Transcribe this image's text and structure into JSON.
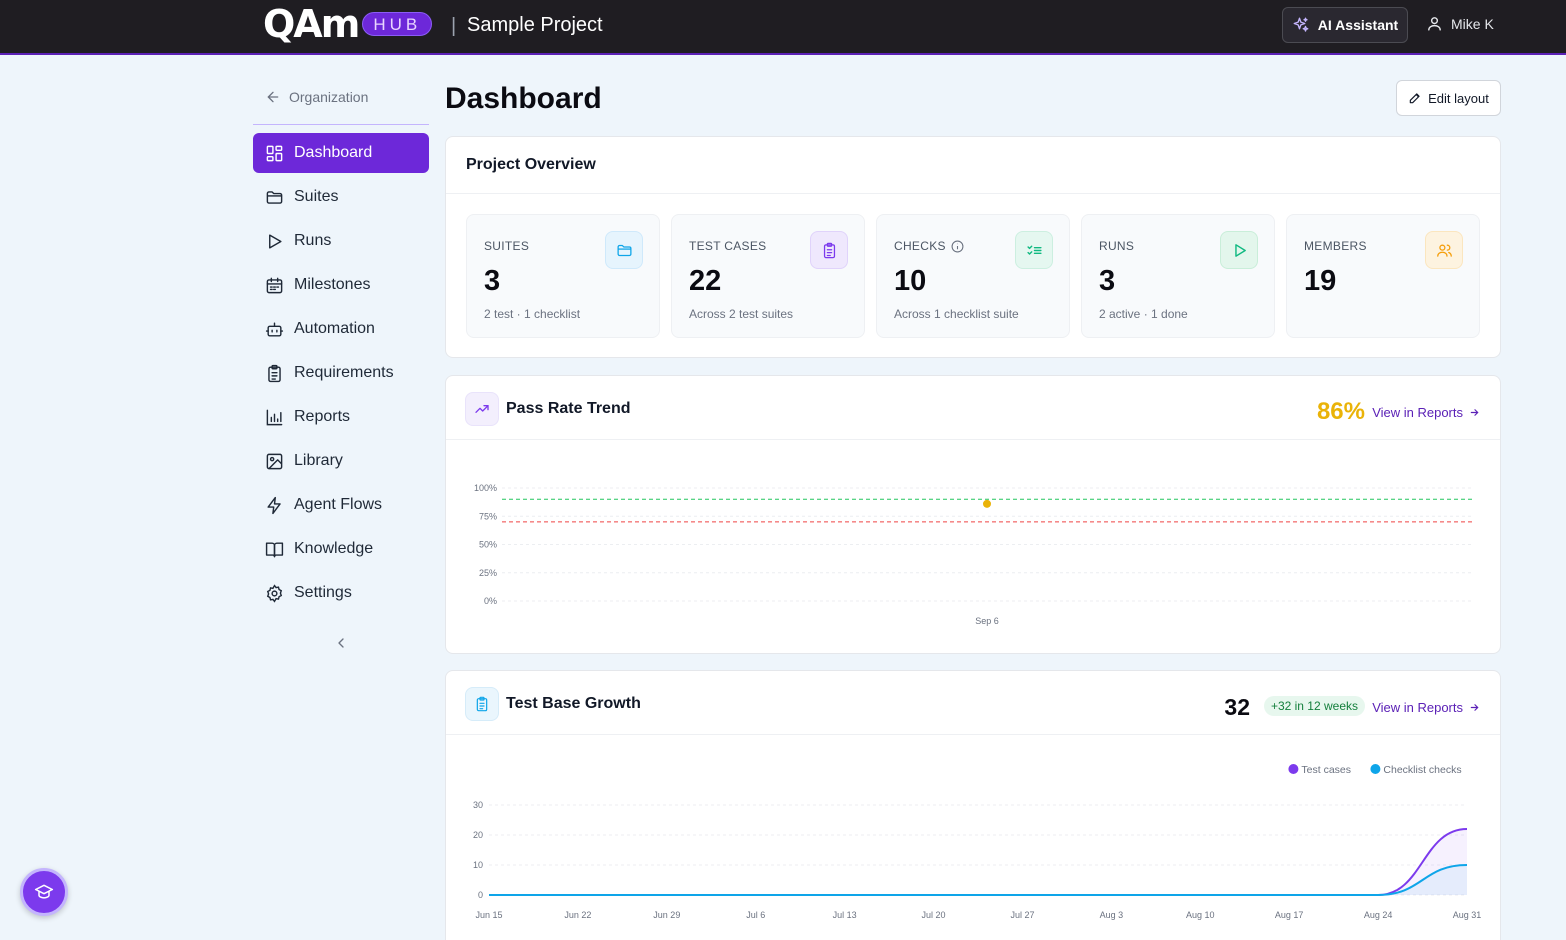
{
  "header": {
    "logo_text": "QAm",
    "logo_badge": "HUB",
    "separator": "|",
    "project_name": "Sample Project",
    "ai_button": "AI Assistant",
    "user_name": "Mike K"
  },
  "sidebar": {
    "back_label": "Organization",
    "items": [
      {
        "label": "Dashboard",
        "icon": "dashboard-grid-icon",
        "active": true
      },
      {
        "label": "Suites",
        "icon": "folder-icon"
      },
      {
        "label": "Runs",
        "icon": "play-icon"
      },
      {
        "label": "Milestones",
        "icon": "calendar-icon"
      },
      {
        "label": "Automation",
        "icon": "robot-icon"
      },
      {
        "label": "Requirements",
        "icon": "clipboard-icon"
      },
      {
        "label": "Reports",
        "icon": "bar-chart-icon"
      },
      {
        "label": "Library",
        "icon": "image-icon"
      },
      {
        "label": "Agent Flows",
        "icon": "lightning-icon"
      },
      {
        "label": "Knowledge",
        "icon": "book-icon"
      },
      {
        "label": "Settings",
        "icon": "gear-icon"
      }
    ]
  },
  "page": {
    "title": "Dashboard",
    "edit_layout": "Edit layout"
  },
  "overview": {
    "title": "Project Overview",
    "stats": [
      {
        "label": "SUITES",
        "value": "3",
        "sub": "2 test · 1 checklist",
        "icon": "folder-icon",
        "color": "#0ea5e9",
        "bg": "#e6f4fd"
      },
      {
        "label": "TEST CASES",
        "value": "22",
        "sub": "Across 2 test suites",
        "icon": "clipboard-icon",
        "color": "#7c3aed",
        "bg": "#efe8fd"
      },
      {
        "label": "CHECKS",
        "value": "10",
        "sub": "Across 1 checklist suite",
        "icon": "checklist-icon",
        "color": "#10b981",
        "bg": "#e5f7f0"
      },
      {
        "label": "RUNS",
        "value": "3",
        "sub": "2 active · 1 done",
        "icon": "play-icon",
        "color": "#10b981",
        "bg": "#e3f6ec"
      },
      {
        "label": "MEMBERS",
        "value": "19",
        "sub": "",
        "icon": "users-icon",
        "color": "#f59e0b",
        "bg": "#fdf3e0"
      }
    ]
  },
  "pass_rate": {
    "title": "Pass Rate Trend",
    "value": "86%",
    "value_color": "#eab308",
    "view_link": "View in Reports"
  },
  "growth": {
    "title": "Test Base Growth",
    "total": "32",
    "delta": "+32 in 12 weeks",
    "view_link": "View in Reports"
  },
  "chart_data": [
    {
      "type": "line",
      "title": "Pass Rate Trend",
      "x": [
        "Sep 6"
      ],
      "series": [
        {
          "values": [
            86
          ],
          "color": "#eab308"
        }
      ],
      "y_ticks": [
        "100%",
        "75%",
        "50%",
        "25%",
        "0%"
      ],
      "ylim": [
        0,
        100
      ],
      "reference_lines": [
        {
          "value": 90,
          "color": "#22c55e",
          "style": "dashed"
        },
        {
          "value": 70,
          "color": "#ef4444",
          "style": "dashed"
        }
      ],
      "grid": true
    },
    {
      "type": "area",
      "title": "Test Base Growth",
      "x": [
        "Jun 15",
        "Jun 22",
        "Jun 29",
        "Jul 6",
        "Jul 13",
        "Jul 20",
        "Jul 27",
        "Aug 3",
        "Aug 10",
        "Aug 17",
        "Aug 24",
        "Aug 31"
      ],
      "y_ticks": [
        "30",
        "20",
        "10",
        "0"
      ],
      "ylim": [
        0,
        30
      ],
      "legend_position": "top-right",
      "series": [
        {
          "name": "Test cases",
          "color": "#7c3aed",
          "values": [
            0,
            0,
            0,
            0,
            0,
            0,
            0,
            0,
            0,
            0,
            0,
            22
          ]
        },
        {
          "name": "Checklist checks",
          "color": "#0ea5e9",
          "values": [
            0,
            0,
            0,
            0,
            0,
            0,
            0,
            0,
            0,
            0,
            0,
            10
          ]
        }
      ],
      "grid": true
    }
  ]
}
